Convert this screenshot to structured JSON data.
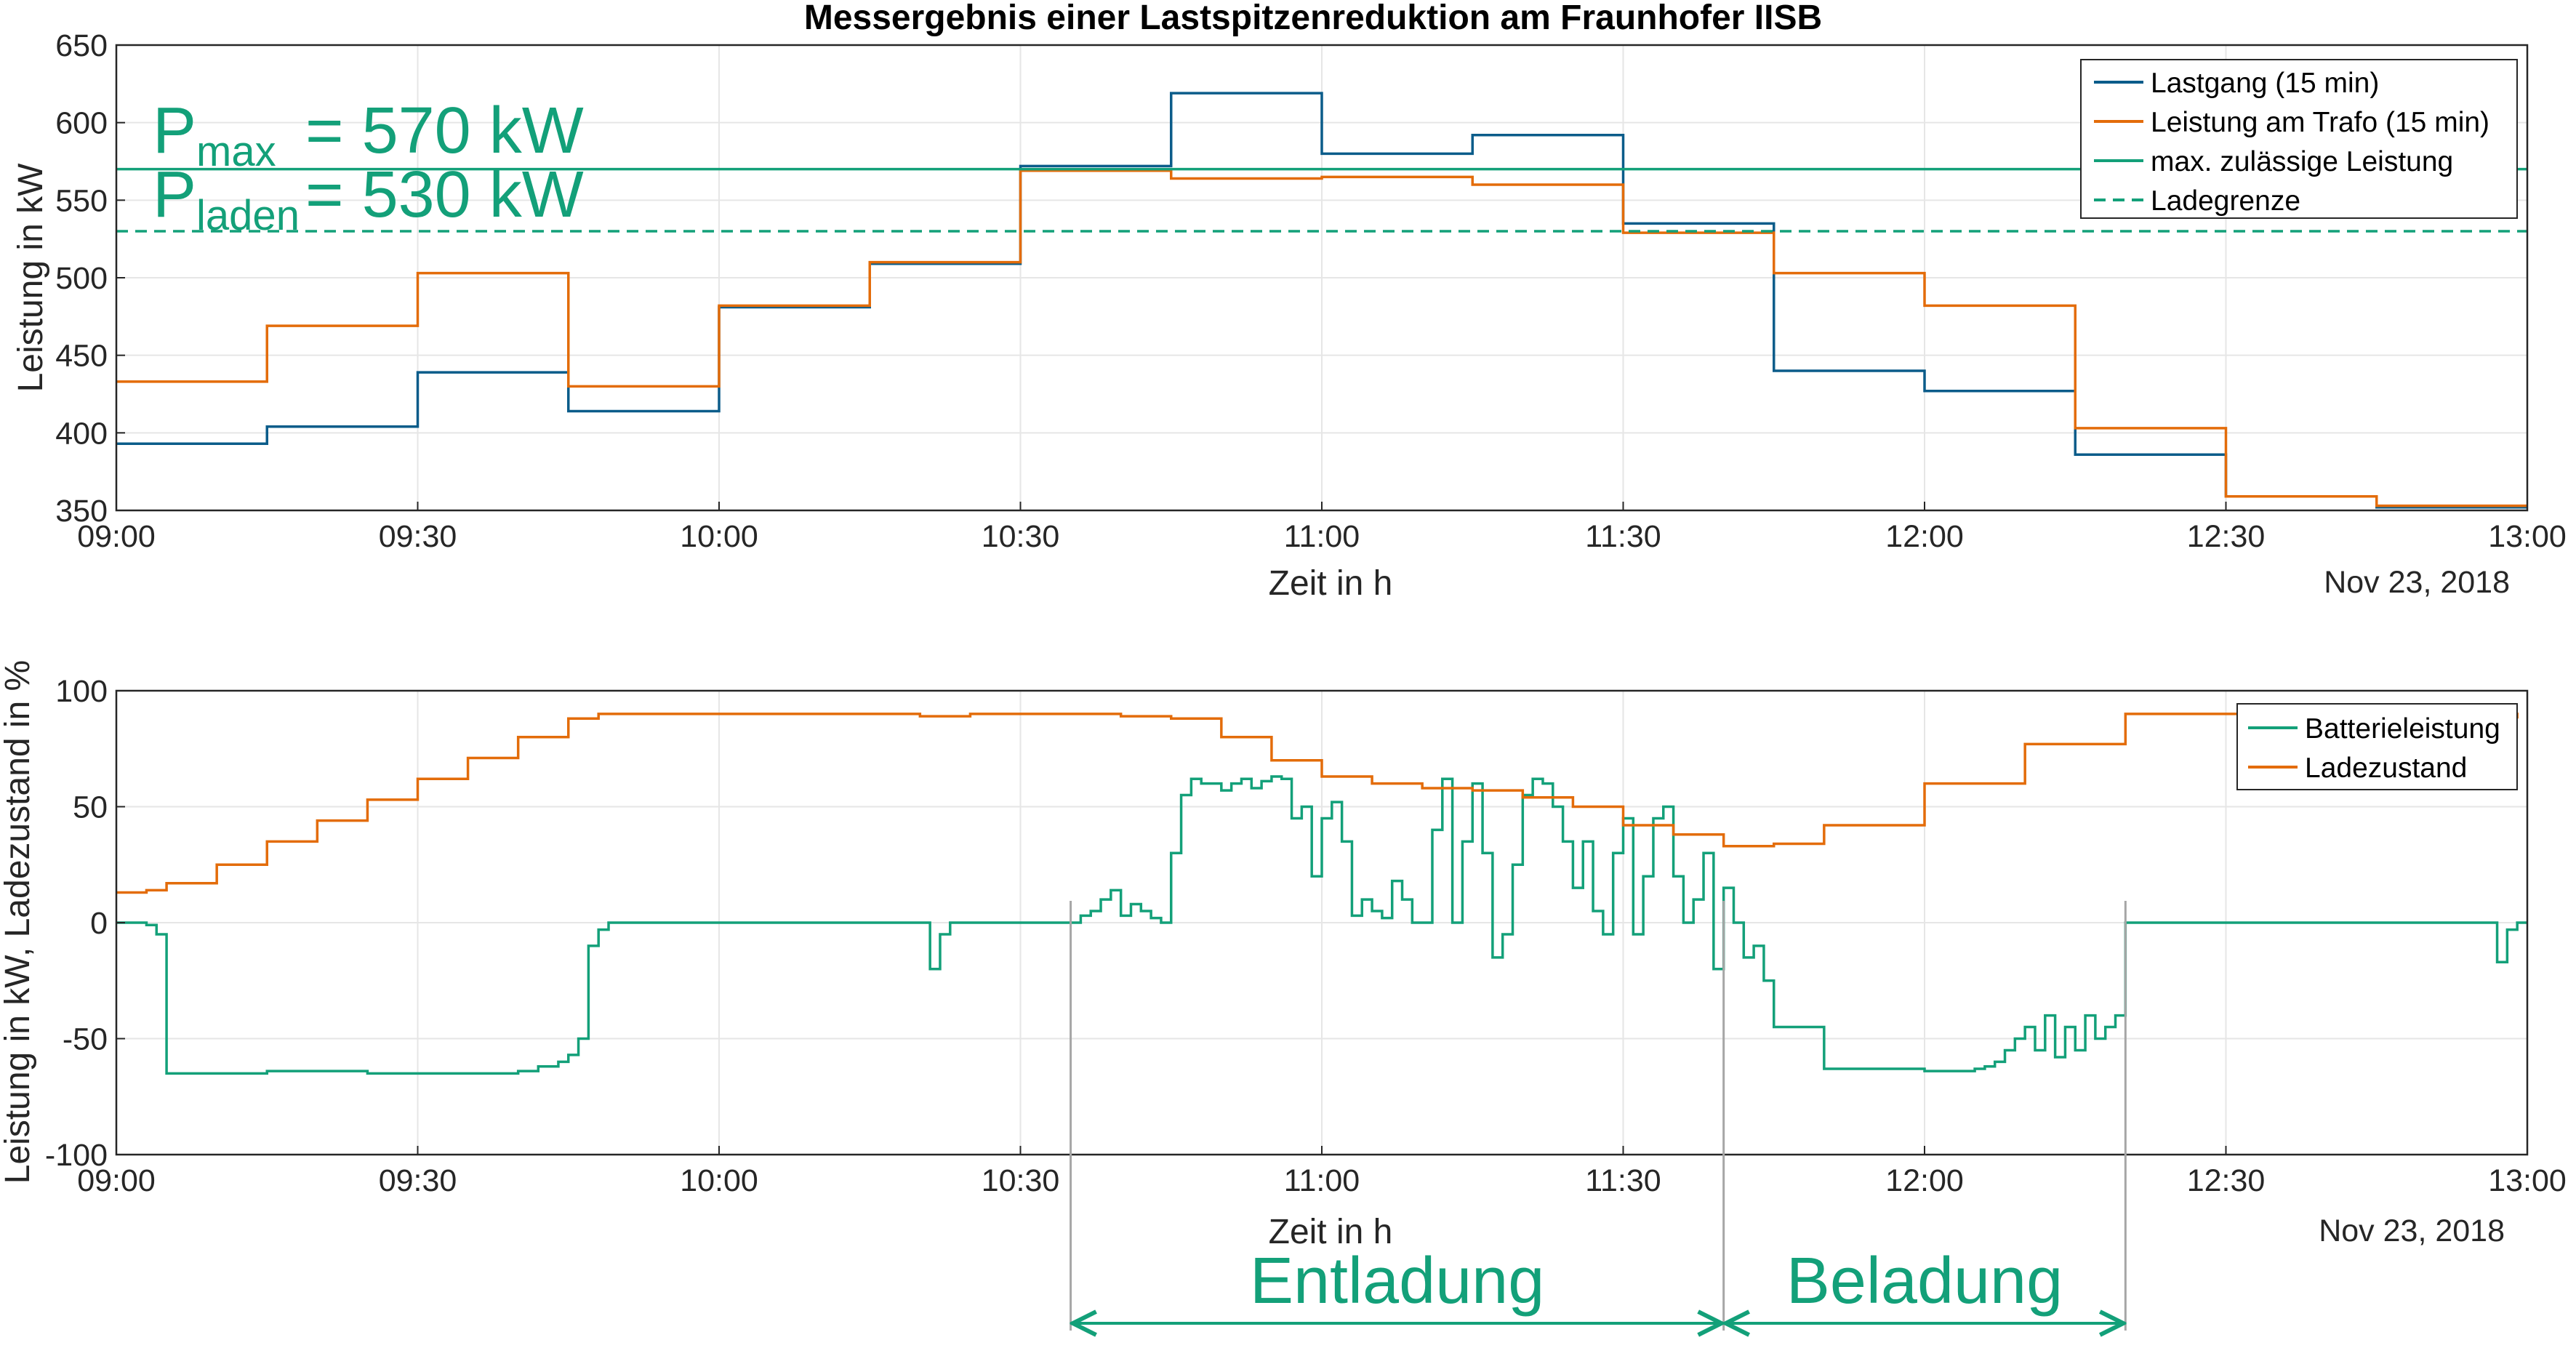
{
  "colors": {
    "lastgang": "#0b5c8a",
    "trafo": "#e36c0a",
    "max": "#13a079",
    "ladegrenze": "#13a079",
    "batterie": "#13a079",
    "soc": "#e36c0a",
    "grid": "#e6e6e6",
    "bracket": "#a6a6a6",
    "annot": "#13a079"
  },
  "chart_data": [
    {
      "type": "line",
      "title": "Messergebnis einer Lastspitzenreduktion am Fraunhofer IISB",
      "xlabel": "Zeit in h",
      "ylabel": "Leistung in kW",
      "date_label": "Nov 23, 2018",
      "xlim": [
        "09:00",
        "13:00"
      ],
      "ylim": [
        350,
        650
      ],
      "x_ticks": [
        "09:00",
        "09:30",
        "10:00",
        "10:30",
        "11:00",
        "11:30",
        "12:00",
        "12:30",
        "13:00"
      ],
      "y_ticks": [
        350,
        400,
        450,
        500,
        550,
        600,
        650
      ],
      "grid": true,
      "legend_position": "top-right",
      "series": [
        {
          "name": "Lastgang (15 min)",
          "style": "step",
          "x": [
            "09:00",
            "09:15",
            "09:30",
            "09:45",
            "10:00",
            "10:15",
            "10:30",
            "10:45",
            "11:00",
            "11:15",
            "11:30",
            "11:45",
            "12:00",
            "12:15",
            "12:30",
            "12:45",
            "13:00"
          ],
          "y": [
            393,
            404,
            439,
            414,
            481,
            509,
            572,
            619,
            580,
            592,
            535,
            440,
            427,
            386,
            359,
            352,
            352
          ]
        },
        {
          "name": "Leistung am Trafo (15 min)",
          "style": "step",
          "x": [
            "09:00",
            "09:15",
            "09:30",
            "09:45",
            "10:00",
            "10:15",
            "10:30",
            "10:45",
            "11:00",
            "11:15",
            "11:30",
            "11:45",
            "12:00",
            "12:15",
            "12:30",
            "12:45",
            "13:00"
          ],
          "y": [
            433,
            469,
            503,
            430,
            482,
            510,
            569,
            564,
            565,
            560,
            529,
            503,
            482,
            403,
            359,
            353,
            353
          ]
        },
        {
          "name": "max. zulässige Leistung",
          "style": "solid",
          "x": [
            "09:00",
            "13:00"
          ],
          "y": [
            570,
            570
          ]
        },
        {
          "name": "Ladegrenze",
          "style": "dashed",
          "x": [
            "09:00",
            "13:00"
          ],
          "y": [
            530,
            530
          ]
        }
      ],
      "annotations": {
        "pmax": {
          "prefix": "P",
          "subscript": "max",
          "text": "= 570 kW"
        },
        "pladen": {
          "prefix": "P",
          "subscript": "laden",
          "text": "= 530 kW"
        }
      }
    },
    {
      "type": "line",
      "xlabel": "Zeit in h",
      "ylabel": "Leistung in kW, Ladezustand in %",
      "date_label": "Nov 23, 2018",
      "xlim": [
        "09:00",
        "13:00"
      ],
      "ylim": [
        -100,
        100
      ],
      "x_ticks": [
        "09:00",
        "09:30",
        "10:00",
        "10:30",
        "11:00",
        "11:30",
        "12:00",
        "12:30",
        "13:00"
      ],
      "y_ticks": [
        -100,
        -50,
        0,
        50,
        100
      ],
      "grid": true,
      "legend_position": "top-right",
      "series": [
        {
          "name": "Batterieleistung",
          "style": "step",
          "x": [
            "09:00",
            "09:03",
            "09:04",
            "09:05",
            "09:15",
            "09:25",
            "09:35",
            "09:40",
            "09:42",
            "09:44",
            "09:45",
            "09:46",
            "09:47",
            "09:48",
            "09:49",
            "10:20",
            "10:21",
            "10:22",
            "10:23",
            "10:35",
            "10:36",
            "10:37",
            "10:38",
            "10:39",
            "10:40",
            "10:41",
            "10:42",
            "10:43",
            "10:44",
            "10:45",
            "10:46",
            "10:47",
            "10:48",
            "10:50",
            "10:51",
            "10:52",
            "10:53",
            "10:54",
            "10:55",
            "10:56",
            "10:57",
            "10:58",
            "10:59",
            "11:00",
            "11:01",
            "11:02",
            "11:03",
            "11:04",
            "11:05",
            "11:06",
            "11:07",
            "11:08",
            "11:09",
            "11:10",
            "11:11",
            "11:12",
            "11:13",
            "11:14",
            "11:15",
            "11:16",
            "11:17",
            "11:18",
            "11:19",
            "11:20",
            "11:21",
            "11:22",
            "11:23",
            "11:24",
            "11:25",
            "11:26",
            "11:27",
            "11:28",
            "11:29",
            "11:30",
            "11:31",
            "11:32",
            "11:33",
            "11:34",
            "11:35",
            "11:36",
            "11:37",
            "11:38",
            "11:39",
            "11:40",
            "11:41",
            "11:42",
            "11:43",
            "11:44",
            "11:45",
            "11:50",
            "12:00",
            "12:05",
            "12:06",
            "12:07",
            "12:08",
            "12:09",
            "12:10",
            "12:11",
            "12:12",
            "12:13",
            "12:14",
            "12:15",
            "12:16",
            "12:17",
            "12:18",
            "12:19",
            "12:20",
            "12:21",
            "12:25",
            "12:30",
            "12:45",
            "12:57",
            "12:58",
            "12:59",
            "13:00"
          ],
          "y": [
            0,
            -1,
            -5,
            -65,
            -64,
            -65,
            -65,
            -64,
            -62,
            -60,
            -57,
            -50,
            -10,
            -3,
            0,
            0,
            -20,
            -5,
            0,
            0,
            3,
            5,
            10,
            14,
            3,
            8,
            5,
            2,
            0,
            30,
            55,
            62,
            60,
            57,
            60,
            62,
            58,
            61,
            63,
            62,
            45,
            50,
            20,
            45,
            52,
            35,
            3,
            10,
            5,
            2,
            18,
            10,
            0,
            0,
            40,
            62,
            0,
            35,
            60,
            30,
            -15,
            -5,
            25,
            55,
            62,
            60,
            50,
            35,
            15,
            35,
            5,
            -5,
            30,
            45,
            -5,
            20,
            45,
            50,
            20,
            0,
            10,
            30,
            -20,
            15,
            0,
            -15,
            -10,
            -25,
            -45,
            -63,
            -64,
            -63,
            -62,
            -60,
            -55,
            -50,
            -45,
            -55,
            -40,
            -58,
            -45,
            -55,
            -40,
            -50,
            -45,
            -40,
            0,
            0,
            0,
            0,
            0,
            -17,
            -3,
            0,
            0
          ]
        },
        {
          "name": "Ladezustand",
          "style": "step",
          "x": [
            "09:00",
            "09:03",
            "09:05",
            "09:10",
            "09:15",
            "09:20",
            "09:25",
            "09:30",
            "09:35",
            "09:40",
            "09:45",
            "09:48",
            "09:50",
            "10:00",
            "10:10",
            "10:20",
            "10:25",
            "10:30",
            "10:40",
            "10:45",
            "10:50",
            "10:55",
            "11:00",
            "11:05",
            "11:10",
            "11:15",
            "11:20",
            "11:25",
            "11:30",
            "11:35",
            "11:40",
            "11:45",
            "11:50",
            "12:00",
            "12:10",
            "12:20",
            "12:30",
            "12:40",
            "12:50",
            "12:59"
          ],
          "y": [
            13,
            14,
            17,
            25,
            35,
            44,
            53,
            62,
            71,
            80,
            88,
            90,
            90,
            90,
            90,
            89,
            90,
            90,
            89,
            88,
            80,
            70,
            63,
            60,
            58,
            57,
            54,
            50,
            42,
            38,
            33,
            34,
            42,
            60,
            77,
            90,
            90,
            90,
            90,
            88
          ]
        }
      ],
      "phases": [
        {
          "label": "Entladung",
          "start": "10:35",
          "end": "11:40"
        },
        {
          "label": "Beladung",
          "start": "11:40",
          "end": "12:20"
        }
      ]
    }
  ]
}
